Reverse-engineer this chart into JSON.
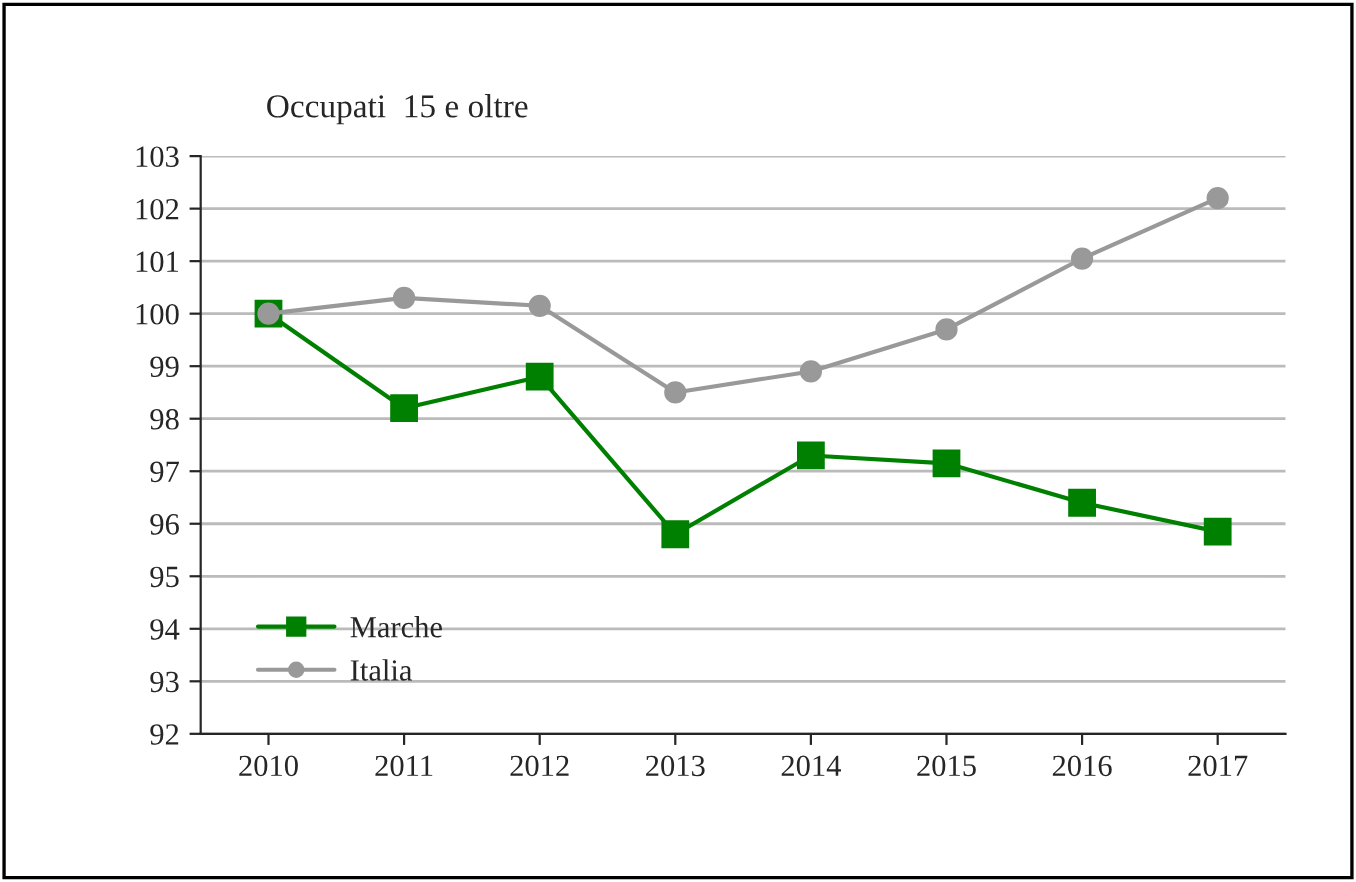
{
  "chart_data": {
    "type": "line",
    "title": "Occupati  15 e oltre",
    "categories": [
      "2010",
      "2011",
      "2012",
      "2013",
      "2014",
      "2015",
      "2016",
      "2017"
    ],
    "series": [
      {
        "name": "Marche",
        "color": "#008000",
        "marker": "square",
        "values": [
          100,
          98.2,
          98.8,
          95.8,
          97.3,
          97.15,
          96.4,
          95.85
        ]
      },
      {
        "name": "Italia",
        "color": "#999999",
        "marker": "circle",
        "values": [
          100,
          100.3,
          100.15,
          98.5,
          98.9,
          99.7,
          101.05,
          102.2
        ]
      }
    ],
    "ylim": [
      92,
      103
    ],
    "yticks": [
      92,
      93,
      94,
      95,
      96,
      97,
      98,
      99,
      100,
      101,
      102,
      103
    ],
    "grid": "y",
    "legend": "bottom left",
    "line_style": "solid"
  }
}
